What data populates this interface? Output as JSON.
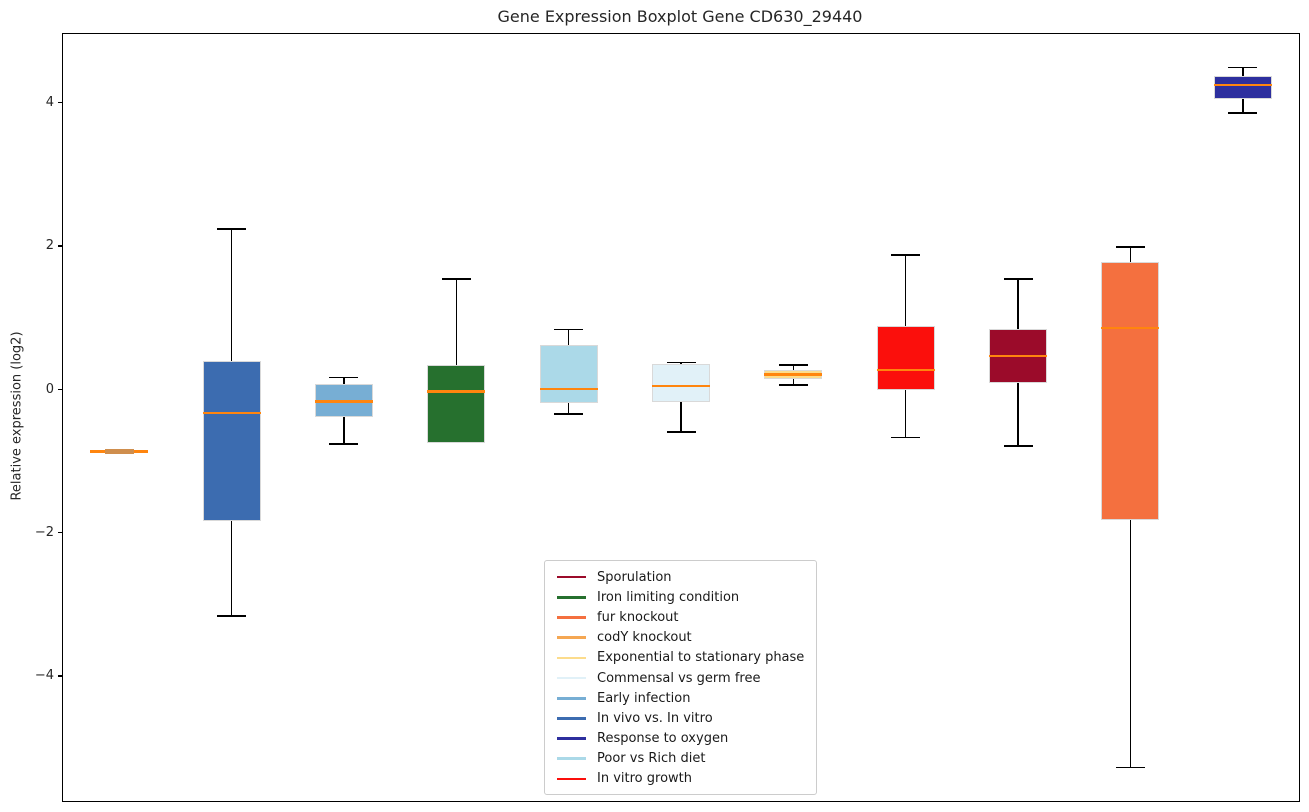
{
  "title": "Gene Expression Boxplot Gene CD630_29440",
  "chart_data": {
    "type": "boxplot",
    "title": "Gene Expression Boxplot Gene CD630_29440",
    "xlabel": "",
    "ylabel": "Relative expression (log2)",
    "ylim": [
      -5.73,
      4.97
    ],
    "yticks": [
      {
        "value": 4,
        "label": "4"
      },
      {
        "value": 2,
        "label": "2"
      },
      {
        "value": 0,
        "label": "0"
      },
      {
        "value": -2,
        "label": "−2"
      },
      {
        "value": -4,
        "label": "−4"
      }
    ],
    "grid": false,
    "median_color": "#ff850e",
    "flat_overlay_color": "#cf8e4d",
    "whisker_color": "#000000",
    "box_edge_color": "#d9d9d9",
    "series": [
      {
        "name": "codY knockout",
        "color": "#f5a753",
        "whislo": -0.86,
        "q1": -0.86,
        "med": -0.86,
        "q3": -0.86,
        "whishi": -0.86
      },
      {
        "name": "In vivo vs. In vitro",
        "color": "#3c6cb0",
        "whislo": -3.15,
        "q1": -1.83,
        "med": -0.32,
        "q3": 0.41,
        "whishi": 2.25
      },
      {
        "name": "Early infection",
        "color": "#77aed4",
        "whislo": -0.75,
        "q1": -0.37,
        "med": -0.16,
        "q3": 0.09,
        "whishi": 0.18
      },
      {
        "name": "Iron limiting condition",
        "color": "#26702e",
        "whislo": -0.74,
        "q1": -0.74,
        "med": -0.02,
        "q3": 0.35,
        "whishi": 1.55
      },
      {
        "name": "Poor vs Rich diet",
        "color": "#abd9e8",
        "whislo": -0.33,
        "q1": -0.18,
        "med": 0.02,
        "q3": 0.63,
        "whishi": 0.85
      },
      {
        "name": "Commensal vs germ free",
        "color": "#e1f1f8",
        "whislo": -0.58,
        "q1": -0.16,
        "med": 0.06,
        "q3": 0.36,
        "whishi": 0.39
      },
      {
        "name": "Exponential to stationary phase",
        "color": "#fcdc8c",
        "whislo": 0.07,
        "q1": 0.16,
        "med": 0.22,
        "q3": 0.28,
        "whishi": 0.35
      },
      {
        "name": "In vitro growth",
        "color": "#fb0f0c",
        "whislo": -0.66,
        "q1": 0.0,
        "med": 0.28,
        "q3": 0.9,
        "whishi": 1.89
      },
      {
        "name": "Sporulation",
        "color": "#9b0b2a",
        "whislo": -0.78,
        "q1": 0.1,
        "med": 0.48,
        "q3": 0.86,
        "whishi": 1.55
      },
      {
        "name": "fur knockout",
        "color": "#f4703f",
        "whislo": -5.26,
        "q1": -1.81,
        "med": 0.87,
        "q3": 1.79,
        "whishi": 2.0
      },
      {
        "name": "Response to oxygen",
        "color": "#2d2f9e",
        "whislo": 3.87,
        "q1": 4.06,
        "med": 4.26,
        "q3": 4.38,
        "whishi": 4.5
      }
    ],
    "legend": {
      "position": "lower-center",
      "items": [
        {
          "label": "Sporulation",
          "color": "#9b0b2a"
        },
        {
          "label": "Iron limiting condition",
          "color": "#26702e"
        },
        {
          "label": "fur knockout",
          "color": "#f4703f"
        },
        {
          "label": "codY knockout",
          "color": "#f5a753"
        },
        {
          "label": "Exponential to stationary phase",
          "color": "#fcdc8c"
        },
        {
          "label": "Commensal vs germ free",
          "color": "#e1f1f8"
        },
        {
          "label": "Early infection",
          "color": "#77aed4"
        },
        {
          "label": "In vivo vs. In vitro",
          "color": "#3c6cb0"
        },
        {
          "label": "Response to oxygen",
          "color": "#2d2f9e"
        },
        {
          "label": "Poor vs Rich diet",
          "color": "#abd9e8"
        },
        {
          "label": "In vitro growth",
          "color": "#fb0f0c"
        }
      ]
    }
  }
}
